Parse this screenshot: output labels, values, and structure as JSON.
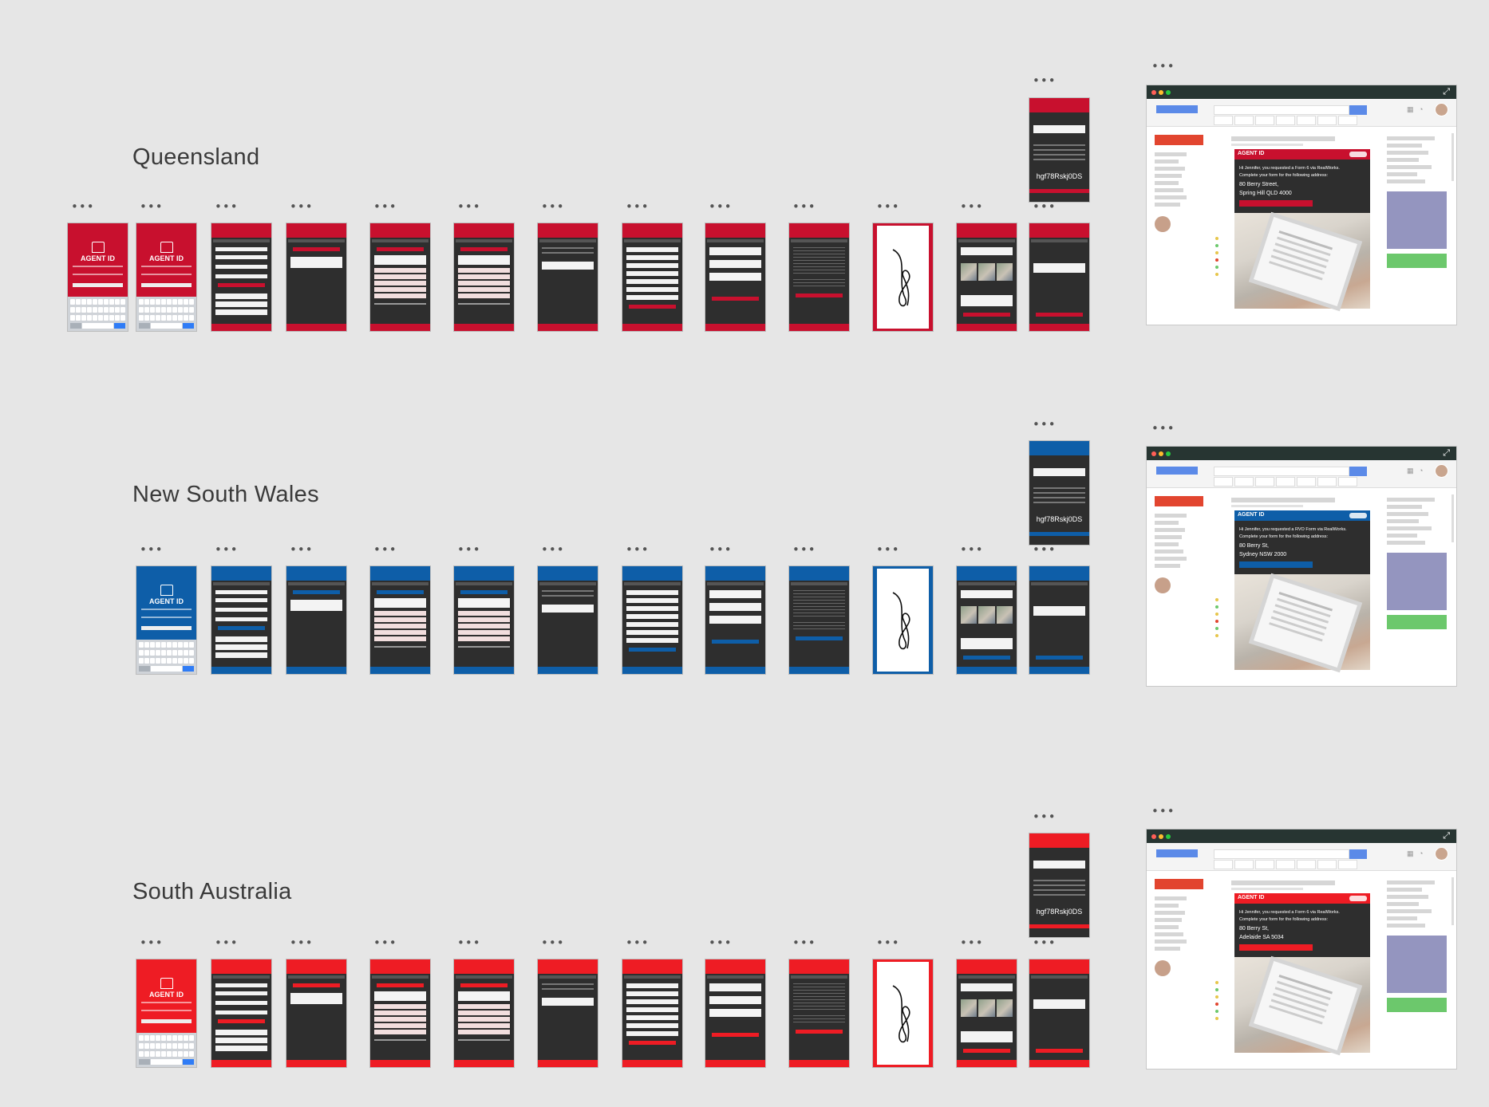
{
  "rows": [
    {
      "title": "Queensland",
      "code": "hgf78Rskj0DS"
    },
    {
      "title": "New South Wales",
      "code": "hgf78Rskj0DS"
    },
    {
      "title": "South Australia",
      "code": "hgf78Rskj0DS"
    }
  ],
  "brand": "AGENT ID",
  "frame_menu_label": "•••",
  "colors": {
    "queensland": "#c8102e",
    "new_south_wales": "#0e5ea8",
    "south_australia": "#ee1c24",
    "dark_screen": "#2e2e2e",
    "browser_chrome": "#273532"
  },
  "emails": [
    {
      "intro": "Hi Jennifer, you requested a Form 6 via RealWorks.",
      "instruction": "Complete your form for the following address:",
      "address_line1": "80 Berry Street,",
      "address_line2": "Spring Hill QLD 4000"
    },
    {
      "intro": "Hi Jennifer, you requested a RVO Form via RealWorks.",
      "instruction": "Complete your form for the following address:",
      "address_line1": "80 Berry St,",
      "address_line2": "Sydney NSW 2000"
    },
    {
      "intro": "Hi Jennifer, you requested a Form 6 via RealWorks.",
      "instruction": "Complete your form for the following address:",
      "address_line1": "80 Berry St,",
      "address_line2": "Adelaide SA 5034"
    }
  ]
}
